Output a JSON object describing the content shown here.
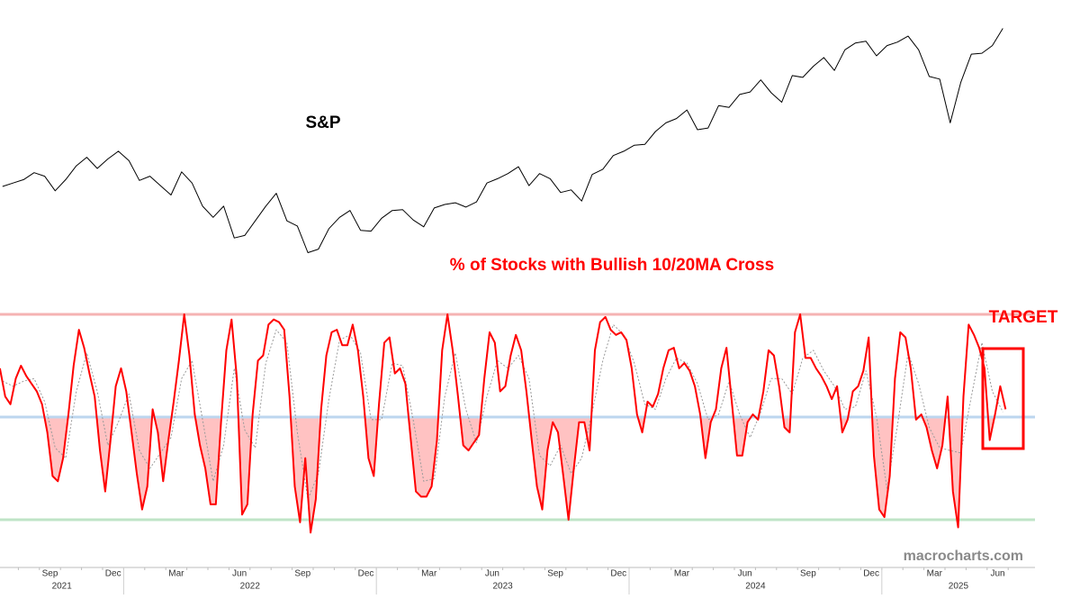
{
  "chart_data": [
    {
      "type": "line",
      "title": "S&P",
      "ylim": [
        3490,
        6530
      ],
      "series": [
        {
          "color": "#000000",
          "values": [
            [
              4360,
              4400
            ],
            [
              4440,
              4520
            ],
            [
              4480,
              4310
            ],
            [
              4440,
              4600
            ],
            [
              4700,
              4570
            ],
            [
              4680,
              4770
            ],
            [
              4660,
              4430
            ],
            [
              4480,
              4370
            ],
            [
              4260,
              4530
            ],
            [
              4400,
              4130
            ],
            [
              4000,
              4130
            ],
            [
              3760,
              3790
            ],
            [
              3960,
              4130
            ],
            [
              4280,
              3960
            ],
            [
              3900,
              3590
            ],
            [
              3630,
              3870
            ],
            [
              4000,
              4080
            ],
            [
              3850,
              3840
            ],
            [
              3990,
              4080
            ],
            [
              4090,
              3970
            ],
            [
              3890,
              4110
            ],
            [
              4150,
              4170
            ],
            [
              4120,
              4180
            ],
            [
              4400,
              4450
            ],
            [
              4510,
              4590
            ],
            [
              4370,
              4510
            ],
            [
              4450,
              4290
            ],
            [
              4320,
              4190
            ],
            [
              4500,
              4560
            ],
            [
              4720,
              4770
            ],
            [
              4840,
              4850
            ],
            [
              5000,
              5100
            ],
            [
              5150,
              5250
            ],
            [
              5020,
              5040
            ],
            [
              5300,
              5280
            ],
            [
              5430,
              5460
            ],
            [
              5600,
              5450
            ],
            [
              5340,
              5650
            ],
            [
              5630,
              5760
            ],
            [
              5860,
              5710
            ],
            [
              5950,
              6030
            ],
            [
              6050,
              5880
            ],
            [
              6000,
              6040
            ],
            [
              6110,
              5950
            ],
            [
              5640,
              5610
            ],
            [
              5100,
              5570
            ],
            [
              5900,
              5910
            ],
            [
              6000,
              6200
            ]
          ]
        }
      ]
    },
    {
      "type": "line",
      "title": "% of Stocks with Bullish 10/20MA Cross",
      "ylim": [
        0,
        100
      ],
      "categories": [
        null,
        null,
        "Sep",
        null,
        null,
        "Dec",
        null,
        null,
        "Mar",
        null,
        null,
        "Jun",
        null,
        null,
        "Sep",
        null,
        null,
        "Dec",
        null,
        null,
        "Mar",
        null,
        null,
        "Jun",
        null,
        null,
        "Sep",
        null,
        null,
        "Dec",
        null,
        null,
        "Mar",
        null,
        null,
        "Jun",
        null,
        null,
        "Sep",
        null,
        null,
        "Dec",
        null,
        null,
        "Mar",
        null,
        null,
        "Jun"
      ],
      "years": [
        "2021",
        "2022",
        "2023",
        "2024",
        "2025"
      ],
      "reference_lines": [
        {
          "value": 90,
          "color": "#f5b3b3"
        },
        {
          "value": 50,
          "color": "#bcd6ef",
          "shade_below": "#ffc2c2"
        },
        {
          "value": 10,
          "color": "#bfe4c7"
        }
      ],
      "series": [
        {
          "color": "#ff0000",
          "values": [
            [
              69,
              58,
              55,
              65
            ],
            [
              70,
              66,
              63,
              60
            ],
            [
              55,
              44,
              27,
              25
            ],
            [
              34,
              51,
              70,
              84
            ],
            [
              77,
              67,
              58,
              37
            ],
            [
              21,
              41,
              62,
              69
            ],
            [
              60,
              44,
              28,
              14
            ],
            [
              23,
              53,
              44,
              25
            ],
            [
              41,
              56,
              72,
              90
            ],
            [
              74,
              51,
              39,
              30
            ],
            [
              16,
              16,
              48,
              76
            ],
            [
              88,
              65,
              12,
              16
            ],
            [
              51,
              72,
              74,
              86
            ],
            [
              88,
              87,
              84,
              58
            ],
            [
              23,
              9,
              34,
              5
            ],
            [
              18,
              53,
              74,
              83
            ],
            [
              84,
              78,
              78,
              86
            ],
            [
              76,
              58,
              34,
              27
            ],
            [
              55,
              79,
              81,
              67
            ],
            [
              69,
              63,
              42,
              21
            ],
            [
              19,
              19,
              23,
              41
            ],
            [
              76,
              90,
              76,
              58
            ],
            [
              39,
              37,
              40,
              43
            ],
            [
              65,
              83,
              79,
              60
            ],
            [
              62,
              74,
              82,
              76
            ],
            [
              60,
              41,
              23,
              14
            ],
            [
              37,
              48,
              44,
              27
            ],
            [
              10,
              30,
              48,
              48
            ],
            [
              37,
              76,
              87,
              89
            ],
            [
              84,
              82,
              83,
              80
            ],
            [
              69,
              51,
              44,
              56
            ],
            [
              54,
              59,
              69,
              76
            ],
            [
              77,
              69,
              71,
              68
            ],
            [
              62,
              51,
              34,
              48
            ],
            [
              53,
              69,
              77,
              56
            ],
            [
              35,
              35,
              48,
              51
            ],
            [
              49,
              60,
              76,
              74
            ],
            [
              62,
              46,
              44,
              83
            ],
            [
              90,
              73,
              73,
              69
            ],
            [
              66,
              62,
              57,
              62
            ],
            [
              44,
              49,
              60,
              62
            ],
            [
              68,
              81,
              35,
              14
            ],
            [
              11,
              27,
              65,
              83
            ],
            [
              81,
              69,
              49,
              51
            ],
            [
              46,
              37,
              30,
              39
            ],
            [
              58,
              21,
              7,
              58
            ],
            [
              86,
              82,
              77,
              69
            ],
            [
              41,
              51,
              62,
              53
            ]
          ]
        },
        {
          "color": "#9a9a9a",
          "dashed": true,
          "values": [
            [
              64,
              62
            ],
            [
              64,
              65
            ],
            [
              56,
              38
            ],
            [
              34,
              60
            ],
            [
              75,
              60
            ],
            [
              39,
              48
            ],
            [
              59,
              37
            ],
            [
              30,
              36
            ],
            [
              42,
              65
            ],
            [
              72,
              49
            ],
            [
              25,
              39
            ],
            [
              69,
              45
            ],
            [
              38,
              71
            ],
            [
              84,
              79
            ],
            [
              44,
              18
            ],
            [
              28,
              57
            ],
            [
              80,
              82
            ],
            [
              75,
              49
            ],
            [
              49,
              71
            ],
            [
              70,
              49
            ],
            [
              25,
              26
            ],
            [
              58,
              75
            ],
            [
              53,
              40
            ],
            [
              58,
              72
            ],
            [
              69,
              74
            ],
            [
              65,
              35
            ],
            [
              31,
              39
            ],
            [
              28,
              34
            ],
            [
              52,
              72
            ],
            [
              86,
              82
            ],
            [
              71,
              55
            ],
            [
              53,
              65
            ],
            [
              73,
              71
            ],
            [
              63,
              49
            ],
            [
              51,
              64
            ],
            [
              51,
              42
            ],
            [
              52,
              65
            ],
            [
              65,
              59
            ],
            [
              73,
              76
            ],
            [
              68,
              62
            ],
            [
              53,
              54
            ],
            [
              68,
              50
            ],
            [
              22,
              47
            ],
            [
              75,
              63
            ],
            [
              46,
              38
            ],
            [
              37,
              36
            ],
            [
              58,
              79
            ],
            [
              60,
              52
            ]
          ]
        }
      ],
      "annotations": [
        {
          "text": "TARGET",
          "color": "#ff0000"
        }
      ]
    },
    {
      "watermark": "macrocharts.com"
    }
  ]
}
